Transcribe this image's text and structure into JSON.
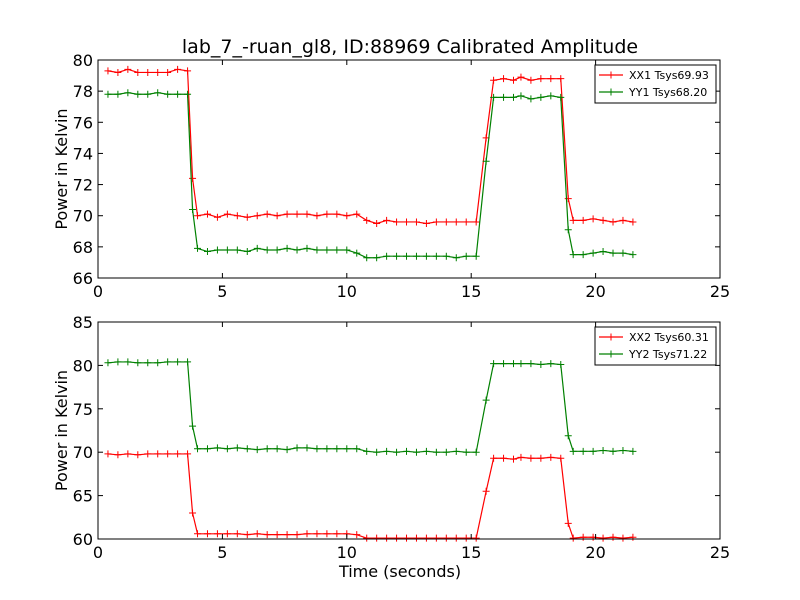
{
  "title": "lab_7_-ruan_gl8, ID:88969 Calibrated Amplitude",
  "colors": {
    "red": "#ff0000",
    "green": "#008000"
  },
  "chart_data": [
    {
      "type": "line",
      "title": "lab_7_-ruan_gl8, ID:88969 Calibrated Amplitude",
      "xlabel": "",
      "ylabel": "Power in Kelvin",
      "xlim": [
        0,
        25
      ],
      "ylim": [
        66,
        80
      ],
      "xticks": [
        0,
        5,
        10,
        15,
        20,
        25
      ],
      "yticks": [
        66,
        68,
        70,
        72,
        74,
        76,
        78,
        80
      ],
      "grid": false,
      "legend_position": "top-right",
      "x": [
        0.4,
        0.8,
        1.2,
        1.6,
        2.0,
        2.4,
        2.8,
        3.2,
        3.6,
        3.8,
        4.0,
        4.4,
        4.8,
        5.2,
        5.6,
        6.0,
        6.4,
        6.8,
        7.2,
        7.6,
        8.0,
        8.4,
        8.8,
        9.2,
        9.6,
        10.0,
        10.4,
        10.8,
        11.2,
        11.6,
        12.0,
        12.4,
        12.8,
        13.2,
        13.6,
        14.0,
        14.4,
        14.8,
        15.2,
        15.6,
        15.9,
        16.3,
        16.7,
        17.0,
        17.4,
        17.8,
        18.2,
        18.6,
        18.9,
        19.1,
        19.5,
        19.9,
        20.3,
        20.7,
        21.1,
        21.5
      ],
      "series": [
        {
          "name": "XX1 Tsys69.93",
          "color": "#ff0000",
          "values": [
            79.3,
            79.2,
            79.4,
            79.2,
            79.2,
            79.2,
            79.2,
            79.4,
            79.3,
            72.4,
            70.0,
            70.1,
            69.9,
            70.1,
            70.0,
            69.9,
            70.0,
            70.1,
            70.0,
            70.1,
            70.1,
            70.1,
            70.0,
            70.1,
            70.1,
            70.0,
            70.1,
            69.7,
            69.5,
            69.7,
            69.6,
            69.6,
            69.6,
            69.5,
            69.6,
            69.6,
            69.6,
            69.6,
            69.6,
            75.0,
            78.7,
            78.8,
            78.7,
            78.9,
            78.7,
            78.8,
            78.8,
            78.8,
            71.1,
            69.7,
            69.7,
            69.8,
            69.7,
            69.6,
            69.7,
            69.6
          ]
        },
        {
          "name": "YY1 Tsys68.20",
          "color": "#008000",
          "values": [
            77.8,
            77.8,
            77.9,
            77.8,
            77.8,
            77.9,
            77.8,
            77.8,
            77.8,
            70.4,
            67.9,
            67.7,
            67.8,
            67.8,
            67.8,
            67.7,
            67.9,
            67.8,
            67.8,
            67.9,
            67.8,
            67.9,
            67.8,
            67.8,
            67.8,
            67.8,
            67.6,
            67.3,
            67.3,
            67.4,
            67.4,
            67.4,
            67.4,
            67.4,
            67.4,
            67.4,
            67.3,
            67.4,
            67.4,
            73.5,
            77.6,
            77.6,
            77.6,
            77.7,
            77.5,
            77.6,
            77.7,
            77.6,
            69.1,
            67.5,
            67.5,
            67.6,
            67.7,
            67.6,
            67.6,
            67.5
          ]
        }
      ]
    },
    {
      "type": "line",
      "title": "",
      "xlabel": "Time (seconds)",
      "ylabel": "Power in Kelvin",
      "xlim": [
        0,
        25
      ],
      "ylim": [
        60,
        85
      ],
      "xticks": [
        0,
        5,
        10,
        15,
        20,
        25
      ],
      "yticks": [
        60,
        65,
        70,
        75,
        80,
        85
      ],
      "grid": false,
      "legend_position": "top-right",
      "x": [
        0.4,
        0.8,
        1.2,
        1.6,
        2.0,
        2.4,
        2.8,
        3.2,
        3.6,
        3.8,
        4.0,
        4.4,
        4.8,
        5.2,
        5.6,
        6.0,
        6.4,
        6.8,
        7.2,
        7.6,
        8.0,
        8.4,
        8.8,
        9.2,
        9.6,
        10.0,
        10.4,
        10.8,
        11.2,
        11.6,
        12.0,
        12.4,
        12.8,
        13.2,
        13.6,
        14.0,
        14.4,
        14.8,
        15.2,
        15.6,
        15.9,
        16.3,
        16.7,
        17.0,
        17.4,
        17.8,
        18.2,
        18.6,
        18.9,
        19.1,
        19.5,
        19.9,
        20.3,
        20.7,
        21.1,
        21.5
      ],
      "series": [
        {
          "name": "XX2 Tsys60.31",
          "color": "#ff0000",
          "values": [
            69.8,
            69.7,
            69.8,
            69.7,
            69.8,
            69.8,
            69.8,
            69.8,
            69.8,
            63.0,
            60.6,
            60.6,
            60.6,
            60.6,
            60.6,
            60.5,
            60.6,
            60.5,
            60.5,
            60.5,
            60.5,
            60.6,
            60.6,
            60.6,
            60.6,
            60.6,
            60.5,
            60.1,
            60.1,
            60.1,
            60.1,
            60.1,
            60.1,
            60.1,
            60.1,
            60.1,
            60.1,
            60.1,
            60.1,
            65.5,
            69.3,
            69.3,
            69.2,
            69.4,
            69.3,
            69.3,
            69.4,
            69.3,
            61.8,
            60.1,
            60.2,
            60.2,
            60.1,
            60.2,
            60.1,
            60.2
          ]
        },
        {
          "name": "YY2 Tsys71.22",
          "color": "#008000",
          "values": [
            80.3,
            80.4,
            80.4,
            80.3,
            80.3,
            80.3,
            80.4,
            80.4,
            80.4,
            73.0,
            70.4,
            70.4,
            70.5,
            70.4,
            70.5,
            70.4,
            70.3,
            70.4,
            70.4,
            70.3,
            70.5,
            70.5,
            70.4,
            70.4,
            70.4,
            70.4,
            70.4,
            70.1,
            70.0,
            70.1,
            70.0,
            70.1,
            70.0,
            70.1,
            70.0,
            70.0,
            70.1,
            70.0,
            70.0,
            76.0,
            80.2,
            80.2,
            80.2,
            80.2,
            80.2,
            80.1,
            80.2,
            80.1,
            71.9,
            70.1,
            70.1,
            70.1,
            70.2,
            70.1,
            70.2,
            70.1
          ]
        }
      ]
    }
  ]
}
